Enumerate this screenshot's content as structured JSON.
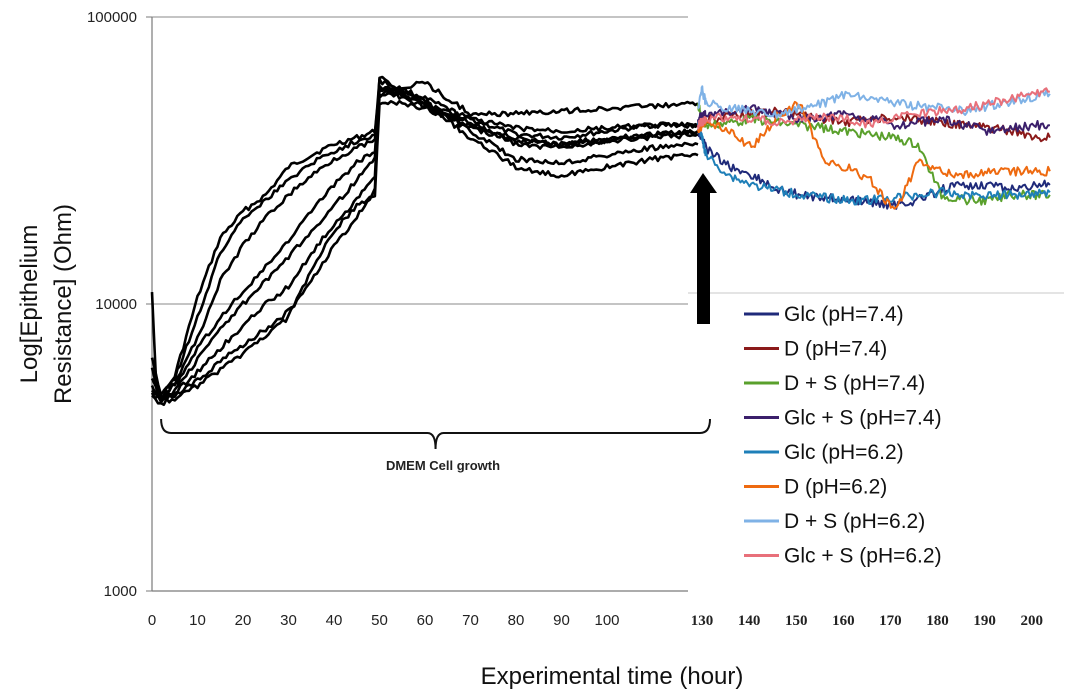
{
  "chart_data": {
    "type": "line",
    "title": "",
    "xlabel": "Experimental time (hour)",
    "ylabel_line1": "Log[Epithelium",
    "ylabel_line2": "Resistance] (Ohm)",
    "y_scale": "log",
    "ylim": [
      1000,
      100000
    ],
    "yticks": [
      {
        "value": 100000,
        "label": "100000"
      },
      {
        "value": 10000,
        "label": "10000"
      },
      {
        "value": 1000,
        "label": "1000"
      }
    ],
    "xlim": [
      0,
      203
    ],
    "xticks_growth": [
      {
        "value": 0,
        "label": "0"
      },
      {
        "value": 10,
        "label": "10"
      },
      {
        "value": 20,
        "label": "20"
      },
      {
        "value": 30,
        "label": "30"
      },
      {
        "value": 40,
        "label": "40"
      },
      {
        "value": 50,
        "label": "50"
      },
      {
        "value": 60,
        "label": "60"
      },
      {
        "value": 70,
        "label": "70"
      },
      {
        "value": 80,
        "label": "80"
      },
      {
        "value": 90,
        "label": "90"
      },
      {
        "value": 100,
        "label": "100"
      }
    ],
    "xticks_treatment": [
      {
        "value": 130,
        "label": "130"
      },
      {
        "value": 140,
        "label": "140"
      },
      {
        "value": 150,
        "label": "150"
      },
      {
        "value": 160,
        "label": "160"
      },
      {
        "value": 170,
        "label": "170"
      },
      {
        "value": 180,
        "label": "180"
      },
      {
        "value": 190,
        "label": "190"
      },
      {
        "value": 200,
        "label": "200"
      }
    ],
    "gridlines": [
      100000,
      10000
    ],
    "annotation_bracket": {
      "label": "DMEM Cell growth",
      "x_from": 2,
      "x_to": 120
    },
    "arrow_x": 120,
    "legend_position": "right",
    "growth_color": "#000000",
    "growth_series": [
      {
        "x": [
          0,
          1,
          2,
          5,
          10,
          15,
          20,
          25,
          30,
          35,
          40,
          45,
          49,
          50,
          55,
          60,
          70,
          80,
          90,
          100,
          110,
          120
        ],
        "y": [
          11000,
          5000,
          4700,
          5600,
          10500,
          17000,
          21000,
          24000,
          30000,
          33000,
          36000,
          38000,
          40000,
          60000,
          56000,
          52000,
          44000,
          39000,
          38000,
          40000,
          42000,
          42000
        ]
      },
      {
        "x": [
          0,
          2,
          5,
          10,
          15,
          20,
          25,
          30,
          35,
          40,
          45,
          49,
          50,
          55,
          60,
          70,
          80,
          90,
          100,
          110,
          120
        ],
        "y": [
          6500,
          4800,
          5500,
          9000,
          15000,
          20000,
          23000,
          27000,
          31000,
          34000,
          37000,
          39000,
          57000,
          55000,
          50000,
          43000,
          36000,
          35000,
          37000,
          39000,
          40000
        ]
      },
      {
        "x": [
          0,
          2,
          5,
          10,
          15,
          20,
          25,
          30,
          35,
          40,
          45,
          49,
          50,
          55,
          60,
          70,
          80,
          90,
          100,
          110,
          120
        ],
        "y": [
          6000,
          4700,
          5300,
          7600,
          12000,
          16000,
          20000,
          24000,
          28000,
          32000,
          35000,
          37000,
          54000,
          53000,
          50000,
          44000,
          41000,
          40000,
          41000,
          42000,
          42000
        ]
      },
      {
        "x": [
          0,
          2,
          5,
          10,
          15,
          20,
          25,
          30,
          35,
          40,
          45,
          49,
          50,
          55,
          60,
          70,
          80,
          90,
          100,
          110,
          120
        ],
        "y": [
          5500,
          4700,
          5200,
          7000,
          9000,
          11000,
          13500,
          16500,
          21000,
          26000,
          31000,
          34000,
          53000,
          57000,
          59000,
          46000,
          46000,
          47000,
          48000,
          49000,
          50000
        ]
      },
      {
        "x": [
          0,
          2,
          5,
          10,
          15,
          20,
          25,
          30,
          35,
          40,
          45,
          49,
          50,
          55,
          60,
          70,
          80,
          90,
          100,
          110,
          120
        ],
        "y": [
          5200,
          4600,
          5000,
          6400,
          8200,
          10000,
          12000,
          14500,
          18000,
          22000,
          27000,
          32000,
          62000,
          55000,
          51000,
          40000,
          32000,
          31000,
          33000,
          35000,
          36000
        ]
      },
      {
        "x": [
          0,
          2,
          5,
          10,
          15,
          20,
          25,
          30,
          35,
          40,
          45,
          49,
          50,
          55,
          60,
          70,
          80,
          90,
          100,
          110,
          120
        ],
        "y": [
          5000,
          4600,
          4900,
          5800,
          7000,
          8400,
          10000,
          11500,
          15000,
          19000,
          23000,
          28000,
          58000,
          52000,
          49000,
          41000,
          37000,
          36000,
          38000,
          39000,
          40000
        ]
      },
      {
        "x": [
          0,
          2,
          5,
          10,
          15,
          20,
          25,
          30,
          35,
          40,
          45,
          49,
          50,
          55,
          60,
          70,
          80,
          90,
          100,
          110,
          120
        ],
        "y": [
          4900,
          4600,
          4800,
          5400,
          6300,
          7200,
          8200,
          9400,
          12000,
          16000,
          20000,
          25000,
          56000,
          54000,
          50000,
          38000,
          30000,
          28000,
          30000,
          32000,
          33000
        ]
      },
      {
        "x": [
          0,
          2,
          5,
          10,
          15,
          20,
          25,
          30,
          35,
          40,
          45,
          49,
          50,
          55,
          60,
          70,
          80,
          90,
          100,
          110,
          120
        ],
        "y": [
          4800,
          4500,
          4700,
          5200,
          5900,
          6700,
          7800,
          9000,
          13000,
          18000,
          22000,
          24000,
          50000,
          50000,
          48000,
          42000,
          38000,
          36000,
          37000,
          38000,
          39000
        ]
      }
    ],
    "series": [
      {
        "name": "Glc (pH=7.4)",
        "color": "#1f2a7a",
        "x": [
          120,
          125,
          130,
          135,
          140,
          145,
          150,
          155,
          160,
          165,
          170,
          175,
          180,
          185,
          190,
          195,
          200,
          203
        ],
        "y": [
          40000,
          38000,
          35000,
          30000,
          28000,
          25000,
          24000,
          23500,
          23000,
          22500,
          22000,
          23000,
          25000,
          26000,
          26000,
          25000,
          26000,
          26000
        ]
      },
      {
        "name": "D (pH=7.4)",
        "color": "#8b1a1a",
        "x": [
          120,
          125,
          130,
          135,
          140,
          145,
          150,
          155,
          160,
          165,
          170,
          175,
          180,
          185,
          190,
          195,
          200,
          203
        ],
        "y": [
          42000,
          43000,
          44000,
          45000,
          46000,
          47000,
          46000,
          44000,
          43000,
          44000,
          45000,
          44000,
          43000,
          42000,
          41000,
          40000,
          38000,
          38000
        ]
      },
      {
        "name": "D + S (pH=7.4)",
        "color": "#5aa02c",
        "x": [
          120,
          125,
          130,
          135,
          140,
          145,
          150,
          155,
          160,
          165,
          170,
          175,
          180,
          185,
          190,
          195,
          200,
          203
        ],
        "y": [
          50000,
          44000,
          42000,
          43000,
          44000,
          43000,
          42000,
          41000,
          40000,
          39000,
          38000,
          36000,
          24000,
          23000,
          23000,
          24000,
          24000,
          24000
        ]
      },
      {
        "name": "Glc + S (pH=7.4)",
        "color": "#3b1f6b",
        "x": [
          120,
          125,
          130,
          135,
          140,
          145,
          150,
          155,
          160,
          165,
          170,
          175,
          180,
          185,
          190,
          195,
          200,
          203
        ],
        "y": [
          44000,
          45000,
          46000,
          47000,
          48000,
          46000,
          44000,
          45000,
          46000,
          44000,
          42000,
          43000,
          44000,
          42000,
          40000,
          41000,
          42000,
          42000
        ]
      },
      {
        "name": "Glc (pH=6.2)",
        "color": "#1e7fb8",
        "x": [
          120,
          125,
          130,
          135,
          140,
          145,
          150,
          155,
          160,
          165,
          170,
          175,
          180,
          185,
          190,
          195,
          200,
          203
        ],
        "y": [
          42000,
          38000,
          33000,
          28000,
          26000,
          25000,
          24000,
          23500,
          23000,
          23000,
          23500,
          24000,
          24500,
          24000,
          24000,
          24000,
          24500,
          24500
        ]
      },
      {
        "name": "D (pH=6.2)",
        "color": "#ee6a10",
        "x": [
          120,
          125,
          130,
          135,
          140,
          145,
          150,
          155,
          160,
          165,
          170,
          175,
          180,
          185,
          190,
          195,
          200,
          203
        ],
        "y": [
          40000,
          42000,
          44000,
          40000,
          35000,
          45000,
          50000,
          31000,
          30000,
          27000,
          21000,
          31000,
          29000,
          28000,
          29000,
          29000,
          29000,
          29000
        ]
      },
      {
        "name": "D + S (pH=6.2)",
        "color": "#7fb2e6",
        "x": [
          120,
          125,
          130,
          135,
          140,
          145,
          150,
          155,
          160,
          165,
          170,
          175,
          180,
          185,
          190,
          195,
          200,
          203
        ],
        "y": [
          48000,
          56000,
          50000,
          48000,
          47000,
          46000,
          48000,
          50000,
          54000,
          52000,
          50000,
          49000,
          48000,
          47000,
          49000,
          51000,
          53000,
          54000
        ]
      },
      {
        "name": "Glc + S (pH=6.2)",
        "color": "#e8707a",
        "x": [
          120,
          125,
          130,
          135,
          140,
          145,
          150,
          155,
          160,
          165,
          170,
          175,
          180,
          185,
          190,
          195,
          200,
          203
        ],
        "y": [
          42000,
          43000,
          44000,
          45000,
          44000,
          43000,
          44000,
          45000,
          44000,
          42000,
          45000,
          46000,
          47000,
          48000,
          50000,
          52000,
          54000,
          55000
        ]
      }
    ]
  }
}
